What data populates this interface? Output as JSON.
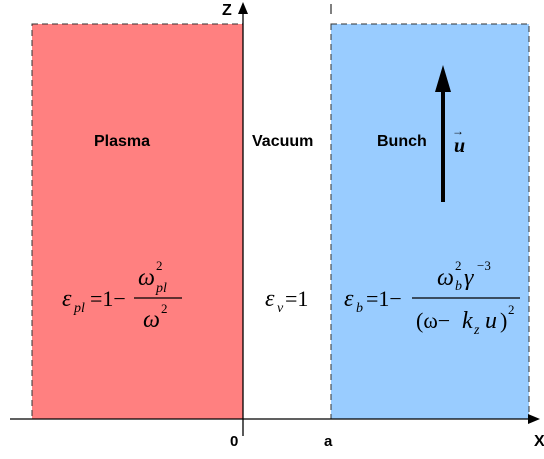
{
  "axes": {
    "z_label": "Z",
    "x_label": "X",
    "origin_label": "0",
    "a_label": "a"
  },
  "regions": {
    "plasma": {
      "label": "Plasma",
      "fill": "#ff8080",
      "formula": {
        "eps": "ε",
        "eps_sub": "pl",
        "eq_prefix": "=1−",
        "num": "ω",
        "num_sup": "2",
        "num_sub": "pl",
        "den": "ω",
        "den_sup": "2"
      }
    },
    "vacuum": {
      "label": "Vacuum",
      "formula": {
        "eps": "ε",
        "eps_sub": "v",
        "eq": "=1"
      }
    },
    "bunch": {
      "label": "Bunch",
      "fill": "#99ccff",
      "velocity": "u",
      "velocity_accent": "→",
      "formula": {
        "eps": "ε",
        "eps_sub": "b",
        "eq_prefix": "=1−",
        "num_omega": "ω",
        "num_sup": "2",
        "num_sub": "b",
        "num_gamma": "γ",
        "num_gamma_sup": "−3",
        "den_open": "(ω−",
        "den_k": "k",
        "den_k_sub": "z",
        "den_u": "u",
        "den_close": ")",
        "den_sup": "2"
      }
    }
  }
}
